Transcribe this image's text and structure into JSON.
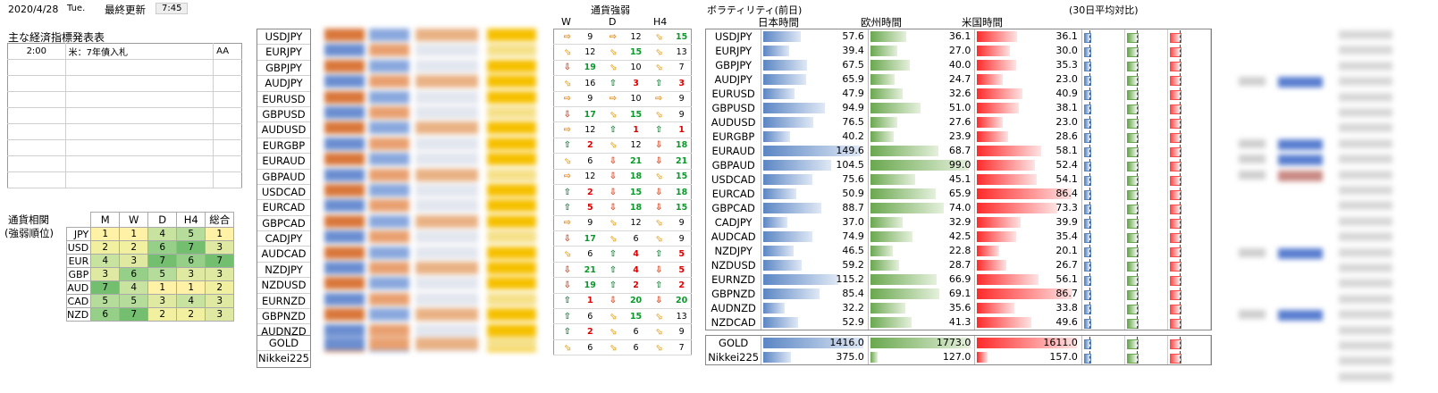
{
  "header": {
    "date": "2020/4/28",
    "weekday": "Tue.",
    "updated_label": "最終更新",
    "updated_time": "7:45"
  },
  "events": {
    "title": "主な経済指標発表表",
    "rows": [
      {
        "time": "2:00",
        "event": "米：7年債入札",
        "rank": "AA"
      },
      {
        "time": "",
        "event": "",
        "rank": ""
      },
      {
        "time": "",
        "event": "",
        "rank": ""
      },
      {
        "time": "",
        "event": "",
        "rank": ""
      },
      {
        "time": "",
        "event": "",
        "rank": ""
      },
      {
        "time": "",
        "event": "",
        "rank": ""
      },
      {
        "time": "",
        "event": "",
        "rank": ""
      },
      {
        "time": "",
        "event": "",
        "rank": ""
      },
      {
        "time": "",
        "event": "",
        "rank": ""
      }
    ]
  },
  "correlation": {
    "title_line1": "通貨相関",
    "title_line2": "(強弱順位)",
    "headers": [
      "M",
      "W",
      "D",
      "H4",
      "総合"
    ],
    "rows": [
      {
        "cur": "JPY",
        "vals": [
          1,
          1,
          4,
          5,
          1
        ]
      },
      {
        "cur": "USD",
        "vals": [
          2,
          2,
          6,
          7,
          3
        ]
      },
      {
        "cur": "EUR",
        "vals": [
          4,
          3,
          7,
          6,
          7
        ]
      },
      {
        "cur": "GBP",
        "vals": [
          3,
          6,
          5,
          3,
          3
        ]
      },
      {
        "cur": "AUD",
        "vals": [
          7,
          4,
          1,
          1,
          2
        ]
      },
      {
        "cur": "CAD",
        "vals": [
          5,
          5,
          3,
          4,
          3
        ]
      },
      {
        "cur": "NZD",
        "vals": [
          6,
          7,
          2,
          2,
          3
        ]
      }
    ]
  },
  "pairs": [
    "USDJPY",
    "EURJPY",
    "GBPJPY",
    "AUDJPY",
    "EURUSD",
    "GBPUSD",
    "AUDUSD",
    "EURGBP",
    "EURAUD",
    "GBPAUD",
    "USDCAD",
    "EURCAD",
    "GBPCAD",
    "CADJPY",
    "AUDCAD",
    "NZDJPY",
    "NZDUSD",
    "EURNZD",
    "GBPNZD",
    "AUDNZD",
    "NZDCAD"
  ],
  "extra_pairs": [
    "GOLD",
    "Nikkei225"
  ],
  "strength": {
    "title": "通貨強弱",
    "headers": [
      "W",
      "D",
      "H4"
    ],
    "rows": [
      [
        [
          "right",
          "9",
          "blk"
        ],
        [
          "right",
          "12",
          "blk"
        ],
        [
          "diag",
          "15",
          "grn"
        ]
      ],
      [
        [
          "diag",
          "12",
          "blk"
        ],
        [
          "diag",
          "15",
          "grn"
        ],
        [
          "diag",
          "13",
          "blk"
        ]
      ],
      [
        [
          "down",
          "19",
          "grn"
        ],
        [
          "diag",
          "10",
          "blk"
        ],
        [
          "diag",
          "7",
          "blk"
        ]
      ],
      [
        [
          "diag",
          "16",
          "blk"
        ],
        [
          "up",
          "3",
          "red"
        ],
        [
          "up",
          "3",
          "red"
        ]
      ],
      [
        [
          "right",
          "9",
          "blk"
        ],
        [
          "right",
          "10",
          "blk"
        ],
        [
          "right",
          "9",
          "blk"
        ]
      ],
      [
        [
          "down",
          "17",
          "grn"
        ],
        [
          "diag",
          "15",
          "grn"
        ],
        [
          "diag",
          "9",
          "blk"
        ]
      ],
      [
        [
          "right",
          "12",
          "blk"
        ],
        [
          "up",
          "1",
          "red"
        ],
        [
          "up",
          "1",
          "red"
        ]
      ],
      [
        [
          "up",
          "2",
          "red"
        ],
        [
          "diag",
          "12",
          "blk"
        ],
        [
          "down",
          "18",
          "grn"
        ]
      ],
      [
        [
          "diag",
          "6",
          "blk"
        ],
        [
          "down",
          "21",
          "grn"
        ],
        [
          "down",
          "21",
          "grn"
        ]
      ],
      [
        [
          "right",
          "12",
          "blk"
        ],
        [
          "down",
          "18",
          "grn"
        ],
        [
          "diag",
          "15",
          "grn"
        ]
      ],
      [
        [
          "up",
          "2",
          "red"
        ],
        [
          "down",
          "15",
          "grn"
        ],
        [
          "down",
          "18",
          "grn"
        ]
      ],
      [
        [
          "up",
          "5",
          "red"
        ],
        [
          "down",
          "18",
          "grn"
        ],
        [
          "down",
          "15",
          "grn"
        ]
      ],
      [
        [
          "right",
          "9",
          "blk"
        ],
        [
          "diag",
          "12",
          "blk"
        ],
        [
          "diag",
          "9",
          "blk"
        ]
      ],
      [
        [
          "down",
          "17",
          "grn"
        ],
        [
          "diag",
          "6",
          "blk"
        ],
        [
          "diag",
          "9",
          "blk"
        ]
      ],
      [
        [
          "diag",
          "6",
          "blk"
        ],
        [
          "up",
          "4",
          "red"
        ],
        [
          "up",
          "5",
          "red"
        ]
      ],
      [
        [
          "down",
          "21",
          "grn"
        ],
        [
          "up",
          "4",
          "red"
        ],
        [
          "down",
          "5",
          "red"
        ]
      ],
      [
        [
          "down",
          "19",
          "grn"
        ],
        [
          "up",
          "2",
          "red"
        ],
        [
          "up",
          "2",
          "red"
        ]
      ],
      [
        [
          "up",
          "1",
          "red"
        ],
        [
          "down",
          "20",
          "grn"
        ],
        [
          "down",
          "20",
          "grn"
        ]
      ],
      [
        [
          "up",
          "6",
          "blk"
        ],
        [
          "diag",
          "15",
          "grn"
        ],
        [
          "diag",
          "13",
          "blk"
        ]
      ],
      [
        [
          "up",
          "2",
          "red"
        ],
        [
          "diag",
          "6",
          "blk"
        ],
        [
          "diag",
          "9",
          "blk"
        ]
      ],
      [
        [
          "diag",
          "6",
          "blk"
        ],
        [
          "diag",
          "6",
          "blk"
        ],
        [
          "diag",
          "7",
          "blk"
        ]
      ]
    ]
  },
  "volatility": {
    "title": "ボラティリティ(前日)",
    "headers": [
      "日本時間",
      "欧州時間",
      "米国時間"
    ],
    "compare_title": "(30日平均対比)",
    "rows": [
      {
        "jp": "57.6",
        "eu": "36.1",
        "us": "36.1"
      },
      {
        "jp": "39.4",
        "eu": "27.0",
        "us": "30.0"
      },
      {
        "jp": "67.5",
        "eu": "40.0",
        "us": "35.3"
      },
      {
        "jp": "65.9",
        "eu": "24.7",
        "us": "23.0"
      },
      {
        "jp": "47.9",
        "eu": "32.6",
        "us": "40.9"
      },
      {
        "jp": "94.9",
        "eu": "51.0",
        "us": "38.1"
      },
      {
        "jp": "76.5",
        "eu": "27.6",
        "us": "23.0"
      },
      {
        "jp": "40.2",
        "eu": "23.9",
        "us": "28.6"
      },
      {
        "jp": "149.6",
        "eu": "68.7",
        "us": "58.1"
      },
      {
        "jp": "104.5",
        "eu": "99.0",
        "us": "52.4"
      },
      {
        "jp": "75.6",
        "eu": "45.1",
        "us": "54.1"
      },
      {
        "jp": "50.9",
        "eu": "65.9",
        "us": "86.4"
      },
      {
        "jp": "88.7",
        "eu": "74.0",
        "us": "73.3"
      },
      {
        "jp": "37.0",
        "eu": "32.9",
        "us": "39.9"
      },
      {
        "jp": "74.9",
        "eu": "42.5",
        "us": "35.4"
      },
      {
        "jp": "46.5",
        "eu": "22.8",
        "us": "20.1"
      },
      {
        "jp": "59.2",
        "eu": "28.7",
        "us": "26.7"
      },
      {
        "jp": "115.2",
        "eu": "66.9",
        "us": "56.1"
      },
      {
        "jp": "85.4",
        "eu": "69.1",
        "us": "86.7"
      },
      {
        "jp": "32.2",
        "eu": "35.6",
        "us": "33.8"
      },
      {
        "jp": "52.9",
        "eu": "41.3",
        "us": "49.6"
      }
    ],
    "extra_rows": [
      {
        "jp": "1416.0",
        "eu": "1773.0",
        "us": "1611.0"
      },
      {
        "jp": "375.0",
        "eu": "127.0",
        "us": "157.0"
      }
    ]
  }
}
